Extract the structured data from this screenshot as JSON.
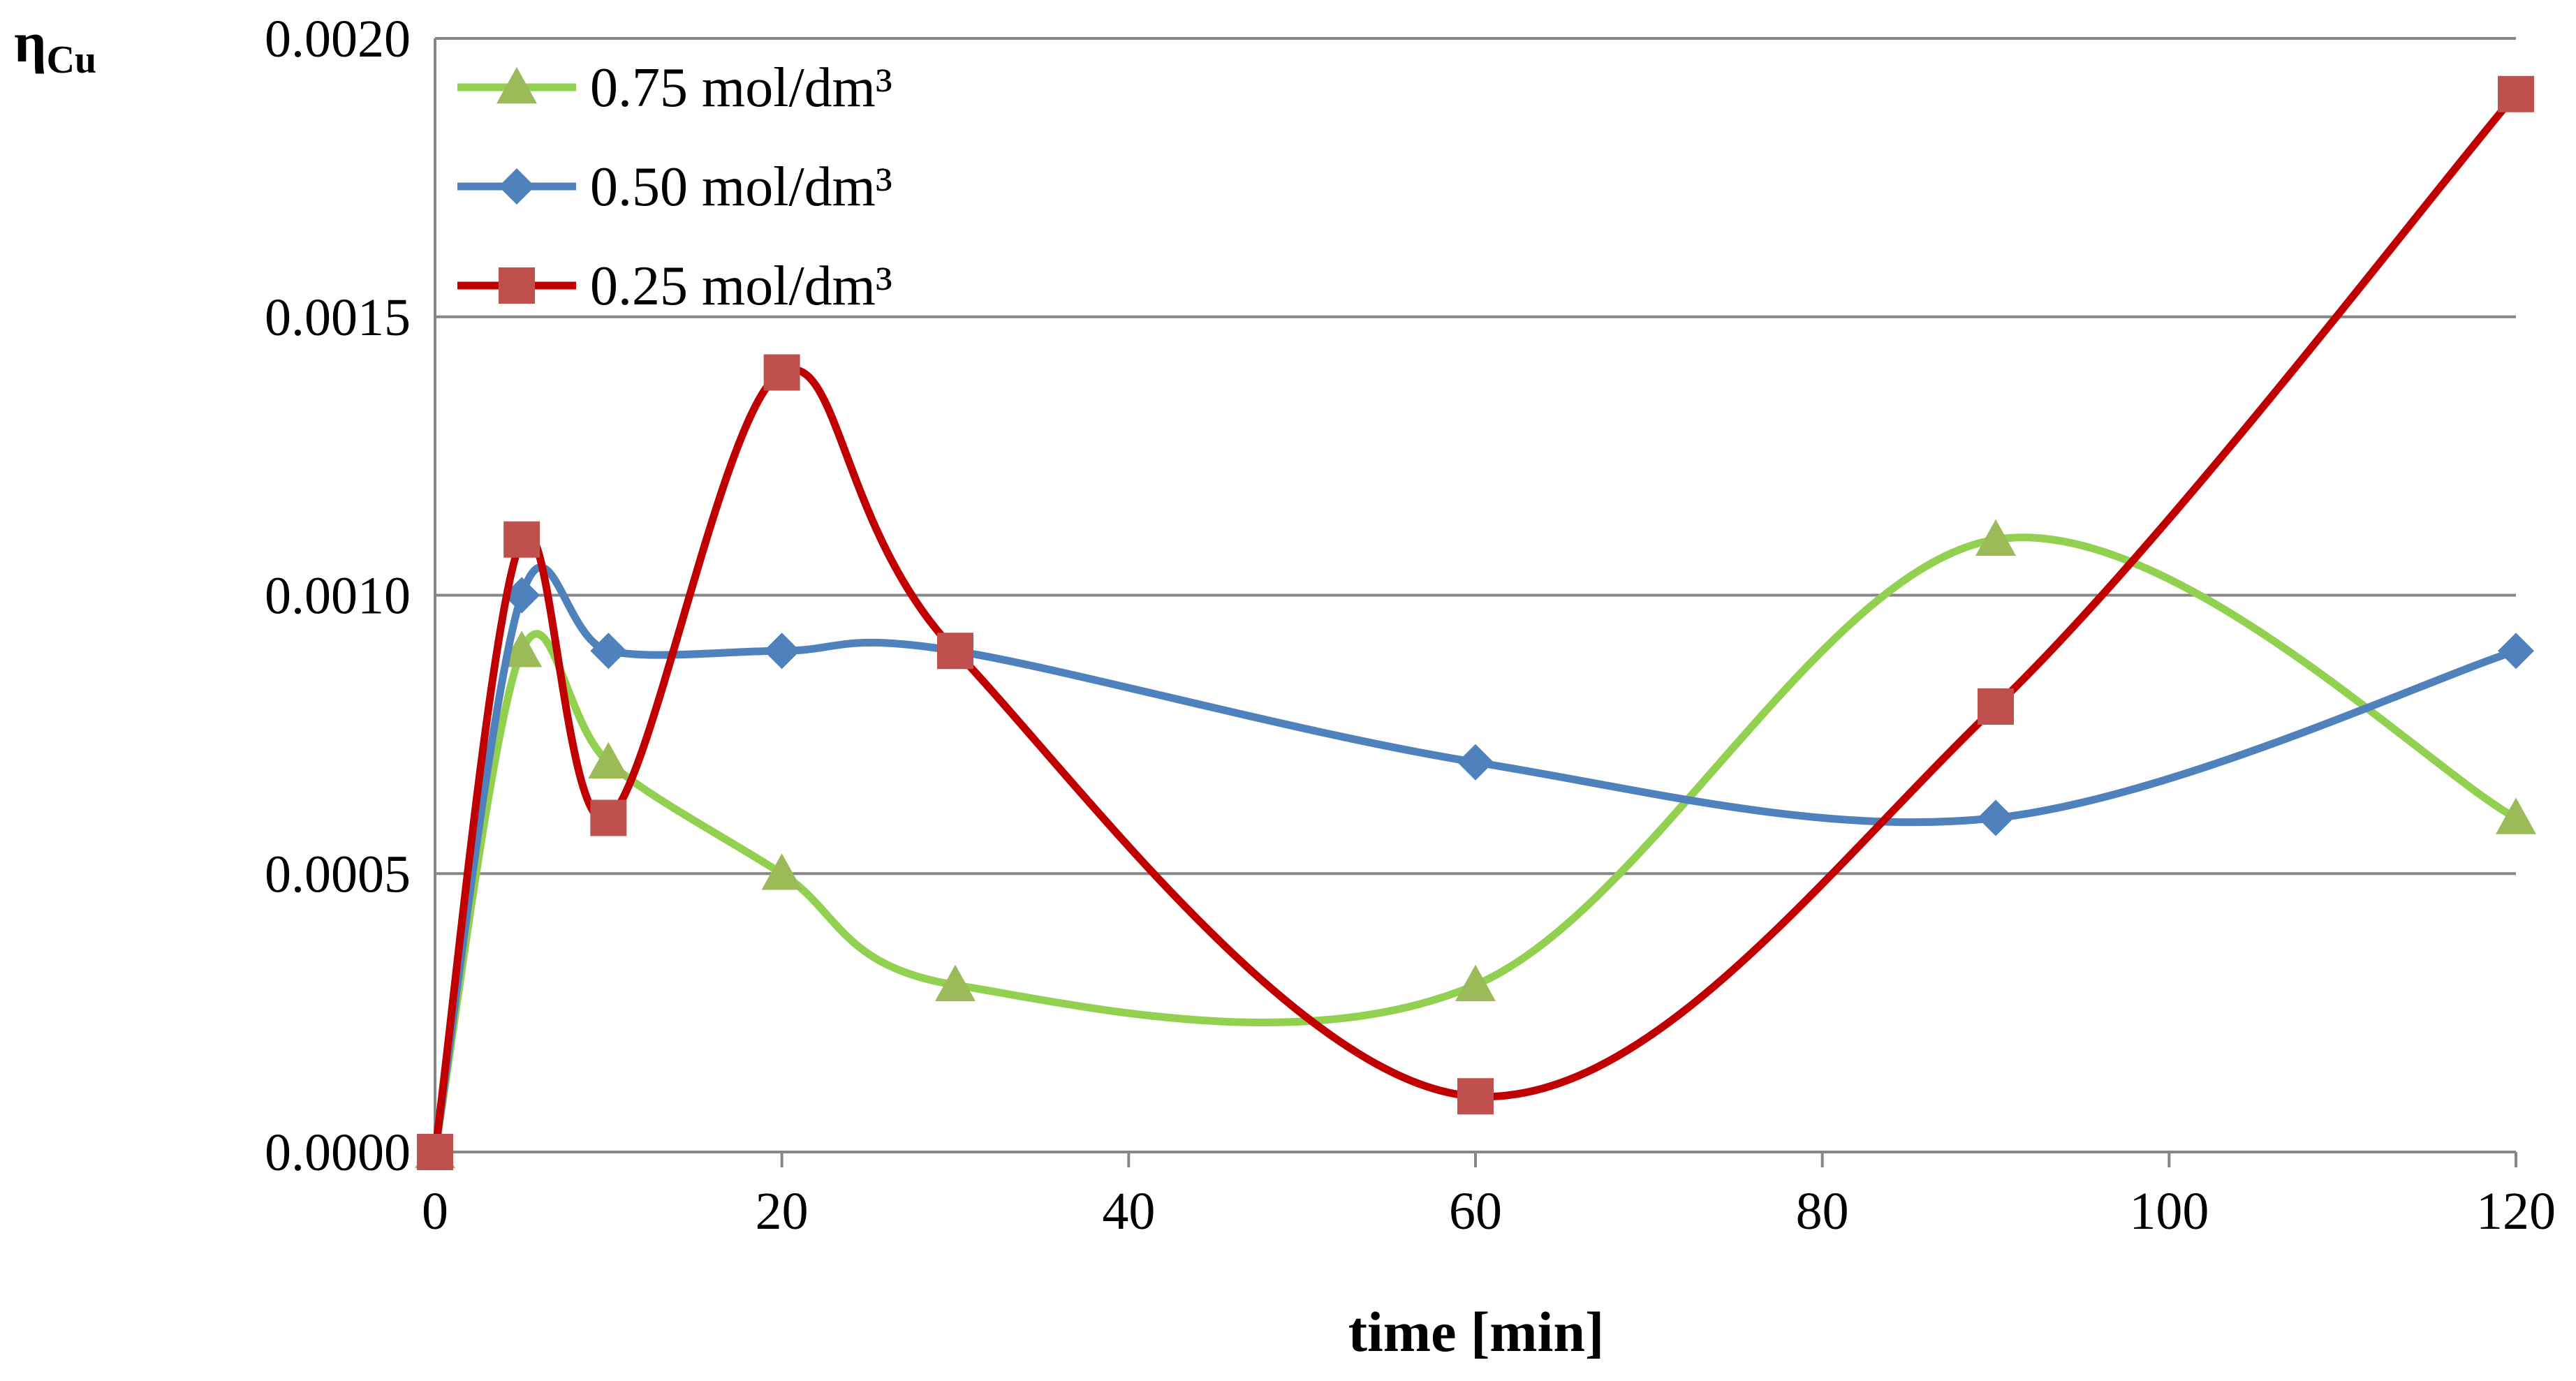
{
  "chart_data": {
    "type": "line",
    "title": "",
    "xlabel": "time [min]",
    "ylabel_main": "η",
    "ylabel_sub": "Cu",
    "xlim": [
      0,
      120
    ],
    "ylim": [
      0,
      0.002
    ],
    "xticks": [
      0,
      20,
      40,
      60,
      80,
      100,
      120
    ],
    "yticks": [
      0.0,
      0.0005,
      0.001,
      0.0015,
      0.002
    ],
    "xtick_labels": [
      "0",
      "20",
      "40",
      "60",
      "80",
      "100",
      "120"
    ],
    "ytick_labels": [
      "0.0000",
      "0.0005",
      "0.0010",
      "0.0015",
      "0.0020"
    ],
    "grid": true,
    "legend_position": "top-left",
    "smooth": true,
    "series": [
      {
        "name": "0.75 mol/dm³",
        "color": "#92D050",
        "marker": "triangle",
        "marker_color": "#9BBB59",
        "x": [
          0,
          5,
          10,
          20,
          30,
          60,
          90,
          120
        ],
        "y": [
          0.0,
          0.0009,
          0.0007,
          0.0005,
          0.0003,
          0.0003,
          0.0011,
          0.0006
        ]
      },
      {
        "name": "0.50 mol/dm³",
        "color": "#4F81BD",
        "marker": "diamond",
        "marker_color": "#4F81BD",
        "x": [
          0,
          5,
          10,
          20,
          30,
          60,
          90,
          120
        ],
        "y": [
          0.0,
          0.001,
          0.0009,
          0.0009,
          0.0009,
          0.0007,
          0.0006,
          0.0009
        ]
      },
      {
        "name": "0.25 mol/dm³",
        "color": "#C00000",
        "marker": "square",
        "marker_color": "#C0504D",
        "x": [
          0,
          5,
          10,
          20,
          30,
          60,
          90,
          120
        ],
        "y": [
          0.0,
          0.0011,
          0.0006,
          0.0014,
          0.0009,
          0.0001,
          0.0008,
          0.0019
        ]
      }
    ]
  }
}
